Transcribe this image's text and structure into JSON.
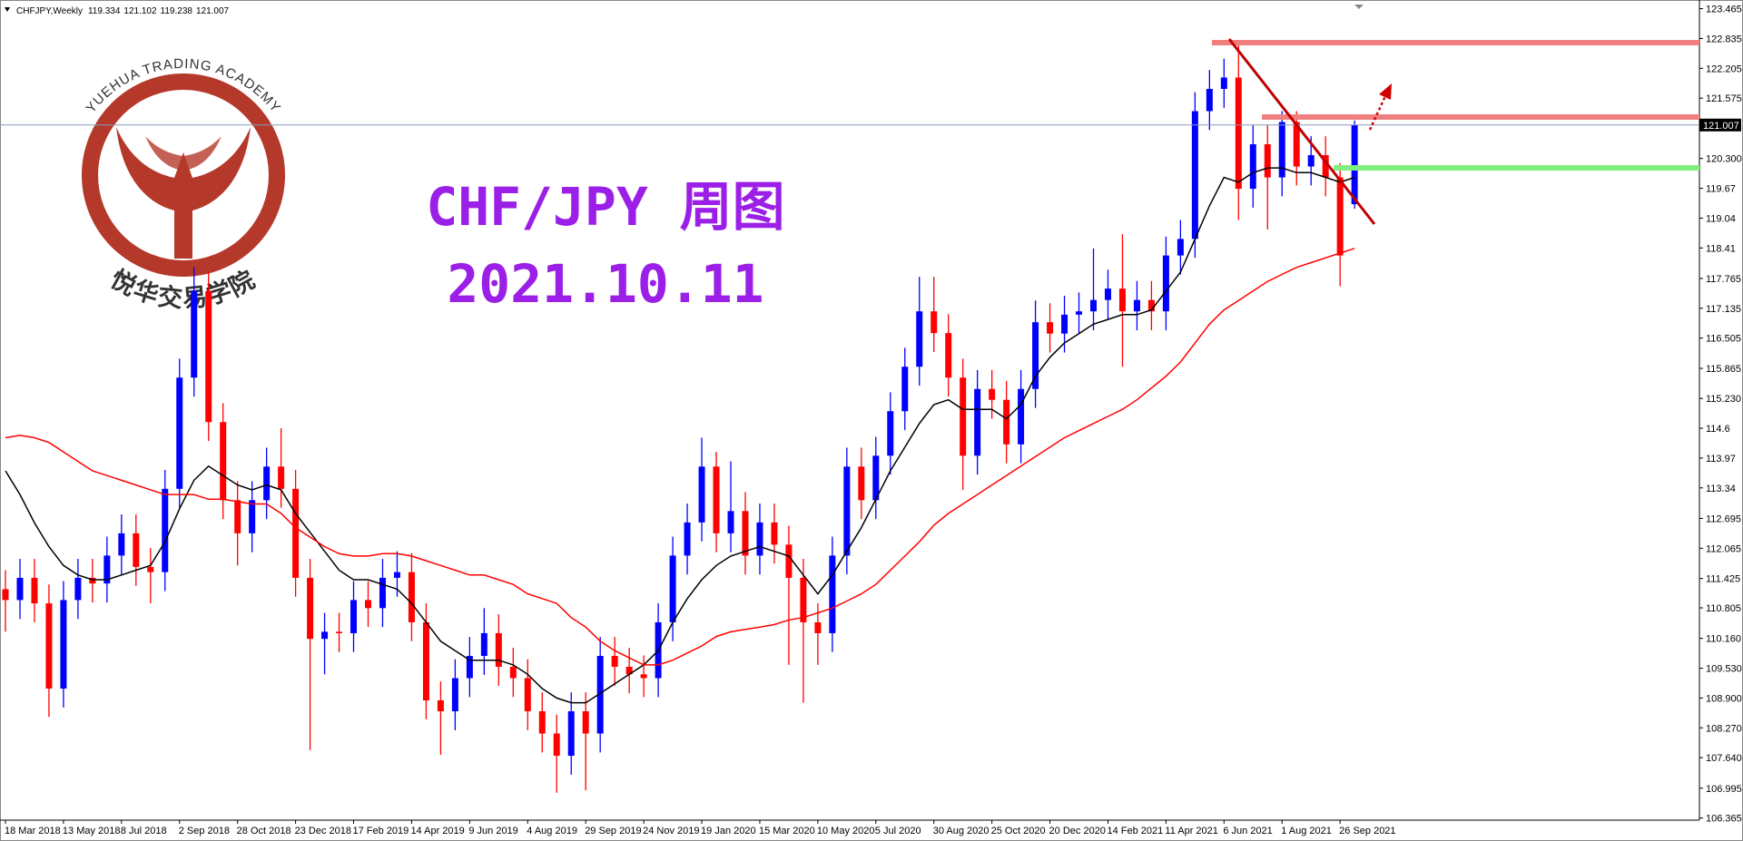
{
  "chart_data": {
    "type": "candlestick",
    "title": "CHFJPY,Weekly",
    "annotations": [
      "CHF/JPY 周图",
      "2021.10.11"
    ],
    "watermark": {
      "top": "YUEHUA TRADING ACADEMY",
      "bottom": "悦华交易学院"
    },
    "up_color": "#0000ff",
    "down_color": "#ff0000",
    "price_line_color": "#8899bb",
    "ylim": [
      106.32,
      123.61
    ],
    "yticks": [
      123.465,
      122.835,
      122.205,
      121.575,
      {
        "value": 120.3,
        "label": "120.300"
      },
      119.67,
      119.04,
      118.41,
      117.765,
      117.135,
      116.505,
      115.865,
      {
        "value": 115.23,
        "label": "115.230"
      },
      114.6,
      113.97,
      113.34,
      112.695,
      112.065,
      111.425,
      110.805,
      {
        "value": 110.16,
        "label": "110.160"
      },
      {
        "value": 109.53,
        "label": "109.530"
      },
      {
        "value": 108.9,
        "label": "108.900"
      },
      {
        "value": 108.27,
        "label": "108.270"
      },
      {
        "value": 107.64,
        "label": "107.640"
      },
      106.995,
      106.365
    ],
    "categories": [
      "18 Mar 2018",
      null,
      null,
      null,
      "13 May 2018",
      null,
      null,
      null,
      "8 Jul 2018",
      null,
      null,
      null,
      "2 Sep 2018",
      null,
      null,
      null,
      "28 Oct 2018",
      null,
      null,
      null,
      "23 Dec 2018",
      null,
      null,
      null,
      "17 Feb 2019",
      null,
      null,
      null,
      "14 Apr 2019",
      null,
      null,
      null,
      "9 Jun 2019",
      null,
      null,
      null,
      "4 Aug 2019",
      null,
      null,
      null,
      "29 Sep 2019",
      null,
      null,
      null,
      "24 Nov 2019",
      null,
      null,
      null,
      "19 Jan 2020",
      null,
      null,
      null,
      "15 Mar 2020",
      null,
      null,
      null,
      "10 May 2020",
      null,
      null,
      null,
      "5 Jul 2020",
      null,
      null,
      null,
      "30 Aug 2020",
      null,
      null,
      null,
      "25 Oct 2020",
      null,
      null,
      null,
      "20 Dec 2020",
      null,
      null,
      null,
      "14 Feb 2021",
      null,
      null,
      null,
      "11 Apr 2021",
      null,
      null,
      null,
      "6 Jun 2021",
      null,
      null,
      null,
      "1 Aug 2021",
      null,
      null,
      null,
      "26 Sep 2021",
      null
    ],
    "open": [
      111.2,
      110.97,
      111.44,
      110.9,
      109.1,
      110.97,
      111.44,
      111.32,
      111.91,
      112.38,
      111.67,
      111.56,
      113.32,
      115.67,
      117.5,
      114.73,
      113.08,
      112.38,
      113.08,
      113.79,
      113.32,
      111.44,
      110.15,
      110.3,
      110.27,
      110.97,
      110.8,
      111.44,
      111.56,
      110.5,
      108.85,
      108.62,
      109.32,
      109.79,
      110.27,
      109.56,
      109.32,
      108.62,
      108.15,
      107.68,
      108.62,
      108.15,
      109.79,
      109.56,
      109.4,
      109.32,
      110.5,
      111.91,
      112.61,
      113.79,
      112.38,
      112.85,
      111.91,
      112.61,
      112.14,
      111.44,
      110.5,
      110.27,
      111.91,
      113.79,
      113.08,
      114.02,
      114.96,
      115.9,
      117.07,
      116.61,
      115.67,
      114.02,
      115.43,
      115.2,
      114.26,
      115.43,
      116.84,
      116.6,
      117.0,
      117.07,
      117.31,
      117.55,
      117.07,
      117.31,
      117.07,
      118.25,
      118.6,
      121.3,
      121.77,
      122.01,
      119.66,
      120.6,
      119.9,
      121.07,
      120.13,
      120.37,
      119.9,
      119.334
    ],
    "high": [
      111.6,
      111.84,
      111.84,
      111.3,
      111.37,
      111.84,
      111.84,
      112.31,
      112.78,
      112.78,
      112.07,
      113.72,
      116.07,
      118.0,
      117.9,
      115.13,
      113.48,
      113.48,
      114.19,
      114.6,
      113.72,
      111.84,
      110.7,
      110.7,
      111.37,
      111.37,
      111.84,
      112.0,
      111.96,
      110.9,
      109.25,
      109.72,
      110.19,
      110.8,
      110.67,
      109.96,
      109.72,
      109.02,
      108.55,
      109.02,
      109.02,
      110.19,
      110.19,
      109.96,
      109.8,
      110.9,
      112.31,
      113.01,
      114.4,
      114.1,
      113.9,
      113.25,
      113.01,
      113.01,
      112.54,
      111.84,
      110.9,
      112.31,
      114.19,
      114.19,
      114.42,
      115.36,
      116.3,
      117.8,
      117.8,
      117.01,
      116.07,
      115.83,
      115.83,
      115.6,
      115.83,
      117.3,
      117.24,
      117.4,
      117.47,
      118.4,
      117.95,
      118.7,
      117.71,
      117.71,
      118.65,
      119.0,
      121.7,
      122.17,
      122.41,
      122.8,
      121.0,
      121.0,
      121.3,
      121.3,
      120.77,
      120.77,
      120.2,
      121.102
    ],
    "low": [
      110.3,
      110.57,
      110.5,
      108.5,
      108.7,
      110.57,
      110.92,
      110.92,
      111.51,
      111.27,
      110.9,
      111.16,
      112.92,
      115.27,
      114.33,
      112.68,
      111.7,
      111.98,
      112.68,
      112.92,
      111.04,
      107.8,
      109.4,
      109.87,
      109.87,
      110.4,
      110.4,
      111.04,
      110.1,
      108.45,
      107.7,
      108.22,
      108.92,
      109.39,
      109.16,
      108.92,
      108.22,
      107.75,
      106.9,
      107.28,
      106.95,
      107.75,
      109.16,
      109.0,
      108.92,
      108.92,
      110.1,
      111.51,
      112.21,
      111.98,
      111.98,
      111.51,
      111.51,
      111.74,
      109.6,
      108.8,
      109.6,
      109.87,
      111.51,
      112.68,
      112.68,
      113.62,
      114.56,
      115.5,
      116.21,
      115.27,
      113.3,
      113.62,
      114.8,
      113.86,
      113.86,
      115.03,
      116.2,
      116.2,
      116.6,
      116.67,
      116.91,
      115.9,
      116.67,
      116.67,
      116.67,
      117.85,
      118.2,
      120.9,
      121.37,
      119.0,
      119.26,
      118.8,
      119.5,
      119.73,
      119.73,
      119.5,
      117.6,
      119.238
    ],
    "close": [
      110.97,
      111.44,
      110.9,
      109.1,
      110.97,
      111.44,
      111.32,
      111.91,
      112.38,
      111.67,
      111.56,
      113.32,
      115.67,
      117.5,
      114.73,
      113.08,
      112.38,
      113.08,
      113.79,
      113.32,
      111.44,
      110.15,
      110.3,
      110.27,
      110.97,
      110.8,
      111.44,
      111.56,
      110.5,
      108.85,
      108.62,
      109.32,
      109.79,
      110.27,
      109.56,
      109.32,
      108.62,
      108.15,
      107.68,
      108.62,
      108.15,
      109.79,
      109.56,
      109.4,
      109.32,
      110.5,
      111.91,
      112.61,
      113.79,
      112.38,
      112.85,
      111.91,
      112.61,
      112.14,
      111.44,
      110.5,
      110.27,
      111.91,
      113.79,
      113.08,
      114.02,
      114.96,
      115.9,
      117.07,
      116.61,
      115.67,
      114.02,
      115.43,
      115.2,
      114.26,
      115.43,
      116.84,
      116.6,
      117.0,
      117.07,
      117.31,
      117.55,
      117.07,
      117.31,
      117.07,
      118.25,
      118.6,
      121.3,
      121.77,
      122.01,
      119.66,
      120.6,
      119.9,
      121.07,
      120.13,
      120.37,
      119.9,
      118.25,
      121.007
    ],
    "series": [
      {
        "color": "#000000",
        "values": [
          113.7,
          113.2,
          112.6,
          112.1,
          111.7,
          111.5,
          111.4,
          111.4,
          111.5,
          111.6,
          111.7,
          112.2,
          112.9,
          113.5,
          113.8,
          113.6,
          113.4,
          113.3,
          113.4,
          113.3,
          112.8,
          112.4,
          112.0,
          111.6,
          111.4,
          111.4,
          111.3,
          111.2,
          110.9,
          110.5,
          110.1,
          109.9,
          109.7,
          109.7,
          109.7,
          109.6,
          109.4,
          109.1,
          108.9,
          108.8,
          108.8,
          109.0,
          109.2,
          109.4,
          109.6,
          109.9,
          110.5,
          111.0,
          111.4,
          111.7,
          111.9,
          112.0,
          112.1,
          112.0,
          111.9,
          111.5,
          111.1,
          111.5,
          112.0,
          112.5,
          113.1,
          113.7,
          114.2,
          114.7,
          115.1,
          115.2,
          115.0,
          115.0,
          115.0,
          114.8,
          115.1,
          115.7,
          116.1,
          116.4,
          116.6,
          116.8,
          116.9,
          117.0,
          117.0,
          117.1,
          117.5,
          117.9,
          118.6,
          119.3,
          119.9,
          119.8,
          120.0,
          120.1,
          120.1,
          120.0,
          120.0,
          119.9,
          119.8,
          119.9
        ]
      },
      {
        "color": "#ff0000",
        "values": [
          114.4,
          114.45,
          114.4,
          114.3,
          114.1,
          113.9,
          113.7,
          113.6,
          113.5,
          113.4,
          113.3,
          113.2,
          113.2,
          113.2,
          113.1,
          113.1,
          113.05,
          113.0,
          113.0,
          112.8,
          112.5,
          112.3,
          112.1,
          111.95,
          111.9,
          111.9,
          111.95,
          111.95,
          111.9,
          111.8,
          111.7,
          111.6,
          111.5,
          111.5,
          111.4,
          111.3,
          111.1,
          111.0,
          110.9,
          110.6,
          110.4,
          110.1,
          109.9,
          109.75,
          109.6,
          109.6,
          109.7,
          109.85,
          110.0,
          110.2,
          110.3,
          110.35,
          110.4,
          110.45,
          110.55,
          110.6,
          110.7,
          110.8,
          110.95,
          111.1,
          111.3,
          111.6,
          111.9,
          112.2,
          112.55,
          112.8,
          113.0,
          113.2,
          113.4,
          113.6,
          113.8,
          114.0,
          114.2,
          114.4,
          114.55,
          114.7,
          114.85,
          115.0,
          115.2,
          115.45,
          115.7,
          116.0,
          116.4,
          116.8,
          117.1,
          117.3,
          117.5,
          117.7,
          117.85,
          118.0,
          118.1,
          118.2,
          118.3,
          118.4
        ]
      }
    ]
  }
}
